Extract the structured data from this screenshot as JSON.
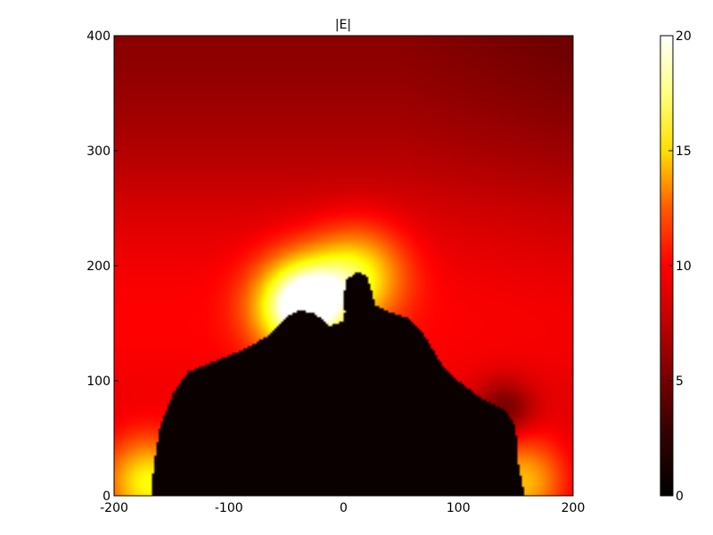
{
  "chart_data": {
    "type": "heatmap",
    "title": "|E|",
    "xlabel": "",
    "ylabel": "",
    "xlim": [
      -200,
      200
    ],
    "ylim": [
      0,
      400
    ],
    "x_ticks": [
      -200,
      -100,
      0,
      100,
      200
    ],
    "y_ticks": [
      0,
      100,
      200,
      300,
      400
    ],
    "x_tick_labels": [
      "-200",
      "-100",
      "0",
      "100",
      "200"
    ],
    "y_tick_labels": [
      "0",
      "100",
      "200",
      "300",
      "400"
    ],
    "colorbar": {
      "colormap": "hot",
      "range": [
        0,
        20
      ],
      "ticks": [
        0,
        5,
        10,
        15,
        20
      ],
      "tick_labels": [
        "0",
        "5",
        "10",
        "15",
        "20"
      ]
    },
    "field_description": "Electric field magnitude around a dark conductor-shaped region; hotspot near (-35, 165) and the tip near (10, 190)",
    "object_boundary": [
      [
        -180,
        0
      ],
      [
        -168,
        0
      ],
      [
        -165,
        30
      ],
      [
        -160,
        60
      ],
      [
        -148,
        90
      ],
      [
        -135,
        108
      ],
      [
        -110,
        118
      ],
      [
        -85,
        128
      ],
      [
        -65,
        140
      ],
      [
        -50,
        155
      ],
      [
        -38,
        162
      ],
      [
        -25,
        158
      ],
      [
        -12,
        148
      ],
      [
        0,
        152
      ],
      [
        1,
        160
      ],
      [
        0,
        175
      ],
      [
        3,
        188
      ],
      [
        12,
        195
      ],
      [
        21,
        190
      ],
      [
        25,
        175
      ],
      [
        28,
        165
      ],
      [
        40,
        160
      ],
      [
        55,
        155
      ],
      [
        70,
        140
      ],
      [
        85,
        115
      ],
      [
        100,
        100
      ],
      [
        120,
        85
      ],
      [
        140,
        75
      ],
      [
        150,
        60
      ],
      [
        152,
        30
      ],
      [
        158,
        0
      ],
      [
        180,
        0
      ]
    ],
    "hotspots": [
      {
        "x": -35,
        "y": 165,
        "value": 20
      },
      {
        "x": 12,
        "y": 192,
        "value": 12
      },
      {
        "x": -170,
        "y": 10,
        "value": 14
      },
      {
        "x": 155,
        "y": 10,
        "value": 12
      }
    ],
    "background_level": 4.5
  }
}
